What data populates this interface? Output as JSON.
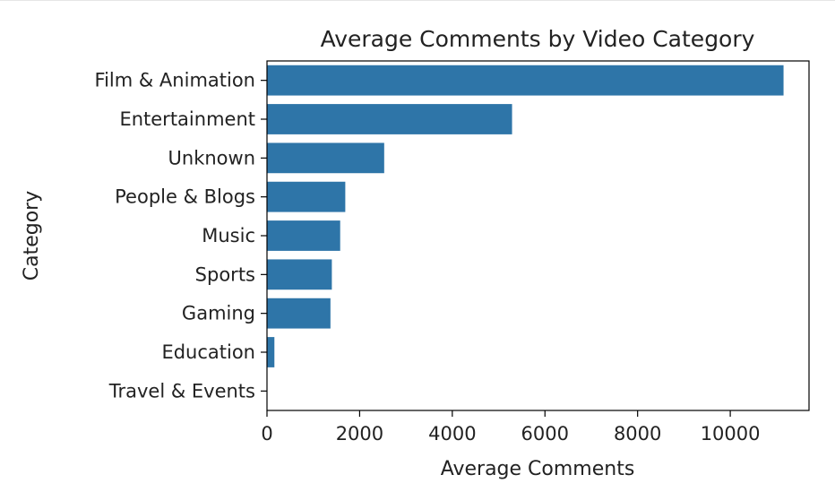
{
  "chart_data": {
    "type": "bar",
    "orientation": "horizontal",
    "title": "Average Comments by Video Category",
    "xlabel": "Average Comments",
    "ylabel": "Category",
    "categories": [
      "Film & Animation",
      "Entertainment",
      "Unknown",
      "People & Blogs",
      "Music",
      "Sports",
      "Gaming",
      "Education",
      "Travel & Events"
    ],
    "values": [
      11150,
      5290,
      2530,
      1690,
      1580,
      1400,
      1370,
      160,
      0
    ],
    "xlim": [
      0,
      11700
    ],
    "xticks": [
      0,
      2000,
      4000,
      6000,
      8000,
      10000
    ],
    "xtick_labels": [
      "0",
      "2000",
      "4000",
      "6000",
      "8000",
      "10000"
    ],
    "bar_color": "#2e75a8",
    "grid": false,
    "legend": "none"
  }
}
